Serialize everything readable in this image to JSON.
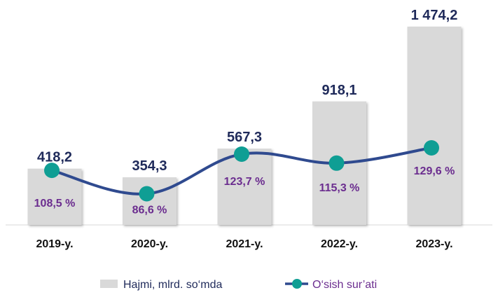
{
  "chart_data": {
    "type": "bar",
    "categories": [
      "2019-y.",
      "2020-y.",
      "2021-y.",
      "2022-y.",
      "2023-y."
    ],
    "series": [
      {
        "name": "Hajmi, mlrd. so‘mda",
        "type": "bar",
        "values": [
          418.2,
          354.3,
          567.3,
          918.1,
          1474.2
        ],
        "labels": [
          "418,2",
          "354,3",
          "567,3",
          "918,1",
          "1 474,2"
        ],
        "color": "#d9d9d9"
      },
      {
        "name": "O‘sish sur’ati",
        "type": "line",
        "values": [
          108.5,
          86.6,
          123.7,
          115.3,
          129.6
        ],
        "labels": [
          "108,5 %",
          "86,6 %",
          "123,7 %",
          "115,3 %",
          "129,6 %"
        ],
        "line_color": "#2f4a8f",
        "marker_color": "#0f9e94"
      }
    ],
    "legend_position": "bottom",
    "grid": false
  }
}
